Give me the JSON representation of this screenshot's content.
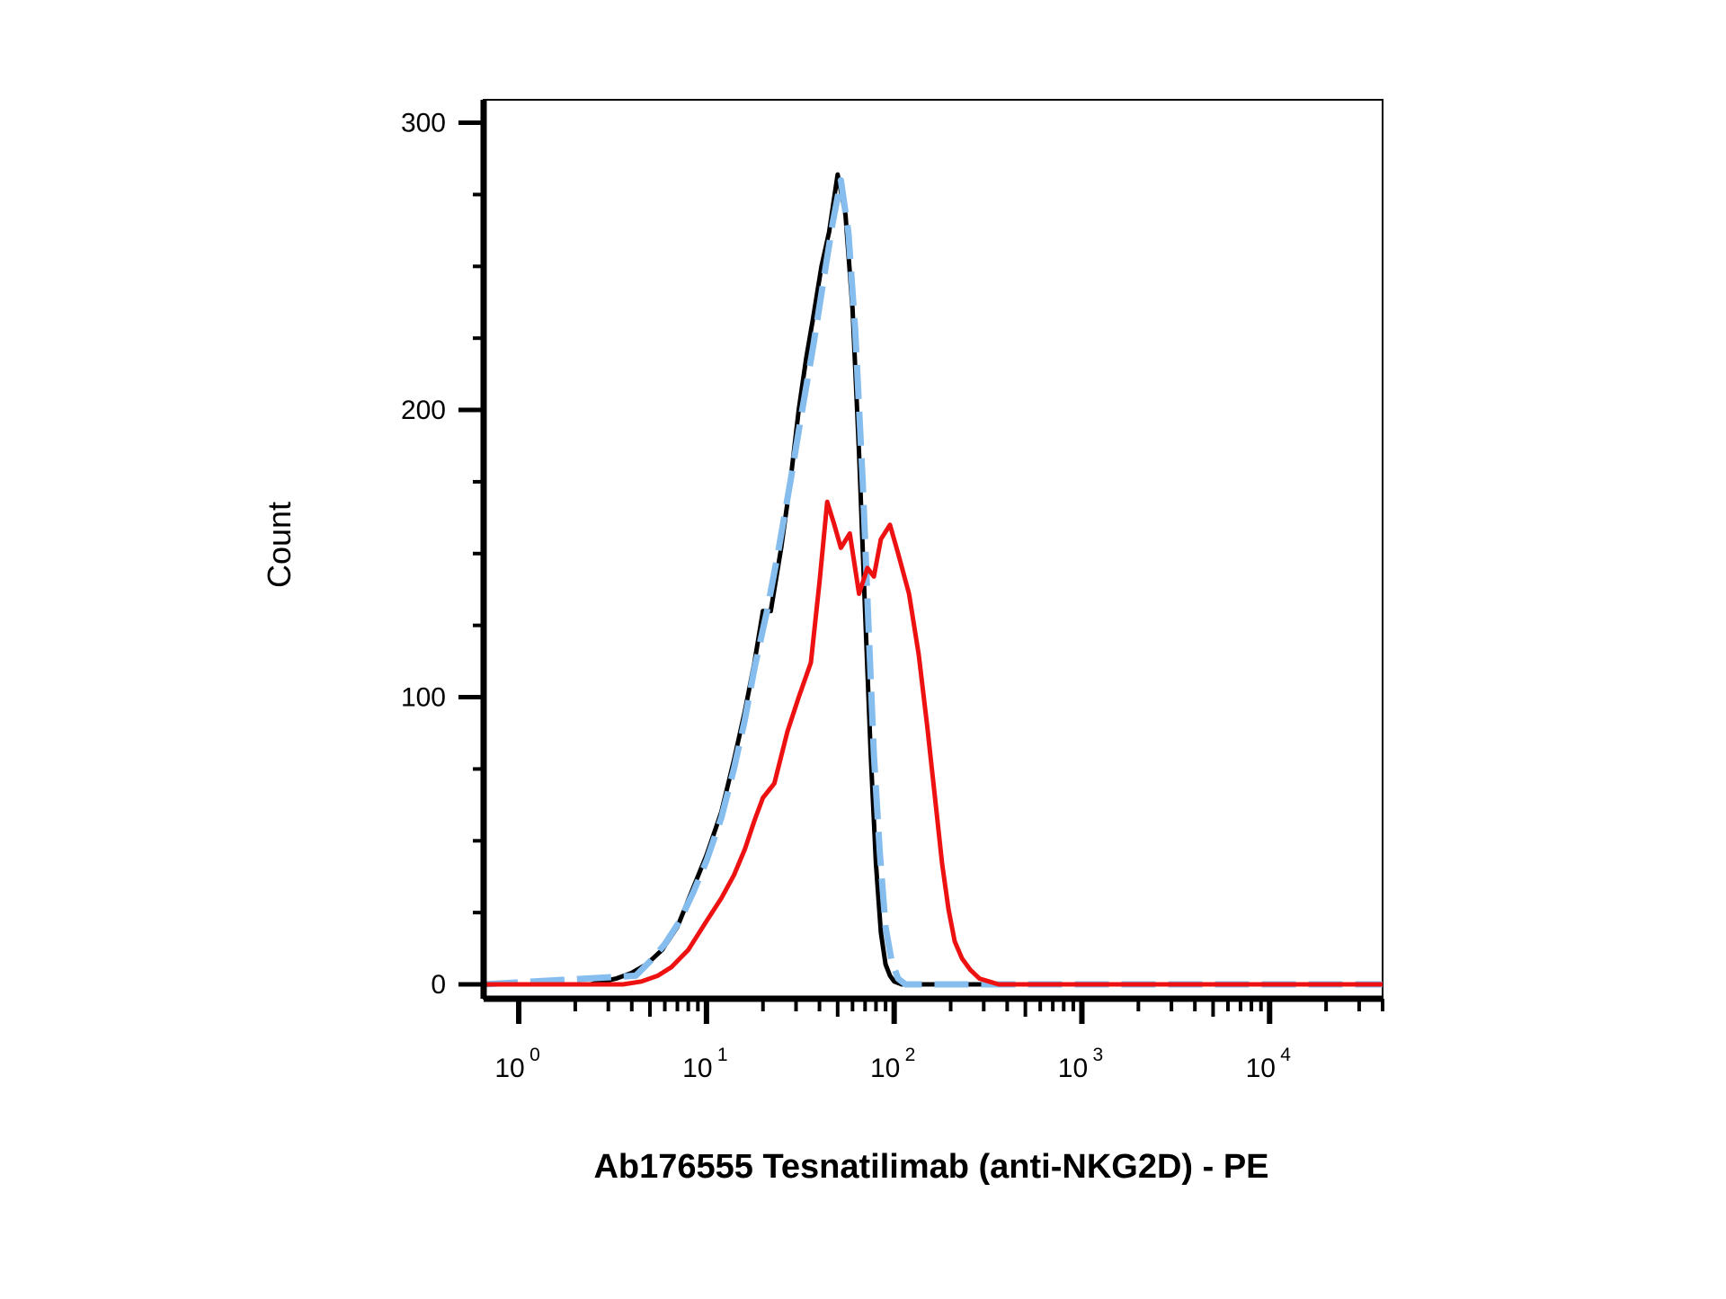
{
  "chart_data": {
    "type": "line",
    "title": "",
    "xlabel": "Ab176555 Tesnatilimab (anti-NKG2D) - PE",
    "ylabel": "Count",
    "xscale": "log",
    "xlim": [
      0.65,
      40000
    ],
    "ylim": [
      -5,
      308
    ],
    "grid": false,
    "legend": "none",
    "y_ticks": [
      {
        "value": 0,
        "label": "0"
      },
      {
        "value": 100,
        "label": "100"
      },
      {
        "value": 200,
        "label": "200"
      },
      {
        "value": 300,
        "label": "300"
      }
    ],
    "x_ticks": [
      {
        "value": 1,
        "base": "10",
        "exp": "0"
      },
      {
        "value": 10,
        "base": "10",
        "exp": "1"
      },
      {
        "value": 100,
        "base": "10",
        "exp": "2"
      },
      {
        "value": 1000,
        "base": "10",
        "exp": "3"
      },
      {
        "value": 10000,
        "base": "10",
        "exp": "4"
      }
    ],
    "series": [
      {
        "color": "#000000",
        "style": "solid",
        "x": [
          0.65,
          2.4,
          2.8,
          3.3,
          4.0,
          4.8,
          5.8,
          7.0,
          8.3,
          10,
          12,
          14,
          16,
          18,
          20,
          22,
          25,
          28,
          31,
          34,
          37,
          41,
          45,
          50,
          55,
          60,
          65,
          70,
          75,
          80,
          85,
          90,
          95,
          100,
          110,
          120,
          140,
          170,
          40000
        ],
        "y": [
          0,
          0,
          1,
          2,
          4,
          7,
          12,
          20,
          32,
          45,
          60,
          78,
          95,
          112,
          130,
          130,
          152,
          175,
          200,
          218,
          232,
          250,
          262,
          282,
          268,
          235,
          185,
          130,
          80,
          42,
          18,
          7,
          3,
          1,
          0,
          0,
          0,
          0,
          0
        ]
      },
      {
        "color": "#85bdee",
        "style": "dashed",
        "x": [
          0.65,
          4.2,
          5.0,
          6.0,
          7.2,
          8.5,
          10,
          12,
          14,
          16,
          18,
          21,
          24,
          28,
          32,
          37,
          42,
          47,
          52,
          57,
          62,
          68,
          73,
          78,
          84,
          90,
          97,
          105,
          115,
          130,
          40000
        ],
        "y": [
          0,
          3,
          8,
          14,
          22,
          32,
          43,
          58,
          75,
          92,
          110,
          130,
          150,
          175,
          198,
          222,
          245,
          265,
          280,
          262,
          228,
          175,
          125,
          80,
          45,
          20,
          8,
          2,
          0,
          0,
          0
        ]
      },
      {
        "color": "#ee1111",
        "style": "solid",
        "x": [
          0.65,
          3.6,
          4.5,
          5.5,
          6.5,
          8.0,
          10,
          12,
          14,
          16,
          18,
          20,
          23,
          27,
          31,
          36,
          40,
          44,
          48,
          52,
          58,
          65,
          72,
          78,
          85,
          95,
          105,
          120,
          135,
          150,
          165,
          180,
          195,
          210,
          230,
          255,
          285,
          320,
          360,
          410,
          470,
          550,
          650,
          800,
          40000
        ],
        "y": [
          0,
          0,
          1,
          3,
          6,
          12,
          22,
          30,
          38,
          47,
          57,
          65,
          70,
          88,
          100,
          112,
          140,
          168,
          160,
          152,
          157,
          136,
          145,
          142,
          155,
          160,
          150,
          136,
          115,
          90,
          65,
          42,
          26,
          15,
          9,
          5,
          2,
          1,
          0,
          0,
          0,
          0,
          0,
          0,
          0
        ]
      }
    ]
  }
}
